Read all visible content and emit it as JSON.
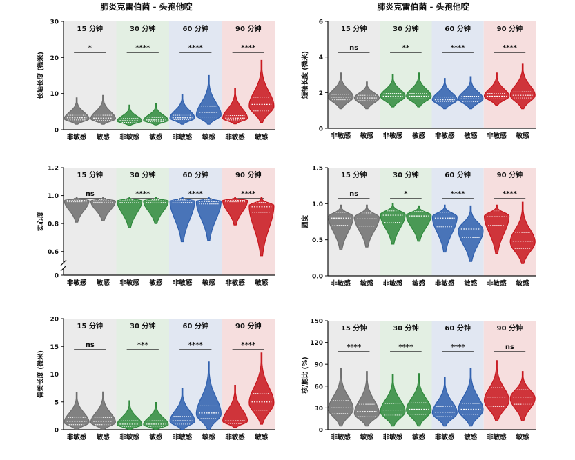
{
  "titles": [
    "肺炎克雷伯菌 - 头孢他啶",
    "肺炎克雷伯菌 - 头孢他啶"
  ],
  "colors": {
    "groups": [
      "#6e6e6e",
      "#2f8a3c",
      "#2e5fae",
      "#c8161d"
    ],
    "backgrounds": [
      "#ebebeb",
      "#e3efe3",
      "#e1e7f2",
      "#f6dede"
    ]
  },
  "chart_data": [
    {
      "type": "violin",
      "id": "long-axis",
      "ylabel": "长轴长度 (微米)",
      "ylim": [
        0,
        30
      ],
      "yticks": [
        0,
        10,
        20,
        30
      ],
      "groups": [
        "15 分钟",
        "30 分钟",
        "60 分钟",
        "90 分钟"
      ],
      "categories": [
        "非敏感",
        "敏感"
      ],
      "significance": [
        "*",
        "****",
        "****",
        "****"
      ],
      "violins": [
        {
          "median": 3.3,
          "q1": 2.7,
          "q3": 4.0,
          "min": 1.5,
          "max": 8.8,
          "peak": 3.0
        },
        {
          "median": 3.2,
          "q1": 2.6,
          "q3": 4.0,
          "min": 1.5,
          "max": 9.5,
          "peak": 3.0
        },
        {
          "median": 2.5,
          "q1": 2.0,
          "q3": 3.1,
          "min": 1.2,
          "max": 6.8,
          "peak": 2.4
        },
        {
          "median": 2.7,
          "q1": 2.2,
          "q3": 3.4,
          "min": 1.3,
          "max": 7.2,
          "peak": 2.6
        },
        {
          "median": 3.3,
          "q1": 2.8,
          "q3": 4.0,
          "min": 1.5,
          "max": 9.8,
          "peak": 3.2
        },
        {
          "median": 4.8,
          "q1": 3.5,
          "q3": 6.5,
          "min": 1.5,
          "max": 15.0,
          "peak": 4.0
        },
        {
          "median": 3.2,
          "q1": 2.7,
          "q3": 3.9,
          "min": 1.6,
          "max": 11.5,
          "peak": 3.1
        },
        {
          "median": 7.0,
          "q1": 5.2,
          "q3": 9.0,
          "min": 2.0,
          "max": 19.2,
          "peak": 6.5
        }
      ]
    },
    {
      "type": "violin",
      "id": "short-axis",
      "ylabel": "短轴长度 (微米)",
      "ylim": [
        0,
        6
      ],
      "yticks": [
        0,
        2,
        4,
        6
      ],
      "groups": [
        "15 分钟",
        "30 分钟",
        "60 分钟",
        "90 分钟"
      ],
      "categories": [
        "非敏感",
        "敏感"
      ],
      "significance": [
        "ns",
        "**",
        "****",
        "****"
      ],
      "violins": [
        {
          "median": 1.75,
          "q1": 1.6,
          "q3": 1.9,
          "min": 1.1,
          "max": 3.1,
          "peak": 1.75
        },
        {
          "median": 1.7,
          "q1": 1.55,
          "q3": 1.85,
          "min": 1.1,
          "max": 2.6,
          "peak": 1.7
        },
        {
          "median": 1.8,
          "q1": 1.65,
          "q3": 1.95,
          "min": 1.2,
          "max": 3.0,
          "peak": 1.8
        },
        {
          "median": 1.8,
          "q1": 1.65,
          "q3": 1.95,
          "min": 1.2,
          "max": 3.1,
          "peak": 1.8
        },
        {
          "median": 1.6,
          "q1": 1.5,
          "q3": 1.75,
          "min": 1.1,
          "max": 2.8,
          "peak": 1.6
        },
        {
          "median": 1.65,
          "q1": 1.5,
          "q3": 1.8,
          "min": 1.1,
          "max": 2.9,
          "peak": 1.65
        },
        {
          "median": 1.8,
          "q1": 1.65,
          "q3": 1.95,
          "min": 1.3,
          "max": 3.1,
          "peak": 1.8
        },
        {
          "median": 1.85,
          "q1": 1.7,
          "q3": 2.05,
          "min": 1.1,
          "max": 3.6,
          "peak": 1.85
        }
      ]
    },
    {
      "type": "violin",
      "id": "solidity",
      "ylabel": "实心度",
      "ylim": [
        0.5,
        1.2
      ],
      "yticks": [
        0,
        0.6,
        0.8,
        1.0,
        1.2
      ],
      "axis_break": true,
      "groups": [
        "15 分钟",
        "30 分钟",
        "60 分钟",
        "90 分钟"
      ],
      "categories": [
        "非敏感",
        "敏感"
      ],
      "significance": [
        "ns",
        "****",
        "****",
        "****"
      ],
      "violins": [
        {
          "median": 0.965,
          "q1": 0.955,
          "q3": 0.975,
          "min": 0.81,
          "max": 0.985,
          "peak": 0.965
        },
        {
          "median": 0.962,
          "q1": 0.952,
          "q3": 0.972,
          "min": 0.82,
          "max": 0.985,
          "peak": 0.962
        },
        {
          "median": 0.962,
          "q1": 0.95,
          "q3": 0.972,
          "min": 0.77,
          "max": 0.985,
          "peak": 0.963
        },
        {
          "median": 0.962,
          "q1": 0.95,
          "q3": 0.972,
          "min": 0.8,
          "max": 0.985,
          "peak": 0.963
        },
        {
          "median": 0.962,
          "q1": 0.95,
          "q3": 0.972,
          "min": 0.67,
          "max": 0.985,
          "peak": 0.963
        },
        {
          "median": 0.958,
          "q1": 0.94,
          "q3": 0.97,
          "min": 0.68,
          "max": 0.985,
          "peak": 0.96
        },
        {
          "median": 0.965,
          "q1": 0.955,
          "q3": 0.975,
          "min": 0.79,
          "max": 0.985,
          "peak": 0.965
        },
        {
          "median": 0.92,
          "q1": 0.88,
          "q3": 0.95,
          "min": 0.57,
          "max": 0.985,
          "peak": 0.93
        }
      ]
    },
    {
      "type": "violin",
      "id": "circularity",
      "ylabel": "圆度",
      "ylim": [
        0,
        1.5
      ],
      "yticks": [
        0.0,
        0.5,
        1.0,
        1.5
      ],
      "groups": [
        "15 分钟",
        "30 分钟",
        "60 分钟",
        "90 分钟"
      ],
      "categories": [
        "非敏感",
        "敏感"
      ],
      "significance": [
        "ns",
        "*",
        "****",
        "****"
      ],
      "violins": [
        {
          "median": 0.8,
          "q1": 0.7,
          "q3": 0.88,
          "min": 0.36,
          "max": 0.98,
          "peak": 0.82
        },
        {
          "median": 0.79,
          "q1": 0.69,
          "q3": 0.87,
          "min": 0.4,
          "max": 0.98,
          "peak": 0.81
        },
        {
          "median": 0.84,
          "q1": 0.74,
          "q3": 0.9,
          "min": 0.44,
          "max": 1.0,
          "peak": 0.85
        },
        {
          "median": 0.83,
          "q1": 0.73,
          "q3": 0.89,
          "min": 0.48,
          "max": 0.97,
          "peak": 0.84
        },
        {
          "median": 0.8,
          "q1": 0.68,
          "q3": 0.88,
          "min": 0.33,
          "max": 0.98,
          "peak": 0.82
        },
        {
          "median": 0.65,
          "q1": 0.53,
          "q3": 0.76,
          "min": 0.2,
          "max": 0.97,
          "peak": 0.63
        },
        {
          "median": 0.82,
          "q1": 0.7,
          "q3": 0.9,
          "min": 0.31,
          "max": 0.98,
          "peak": 0.83
        },
        {
          "median": 0.48,
          "q1": 0.38,
          "q3": 0.6,
          "min": 0.17,
          "max": 1.02,
          "peak": 0.47
        }
      ]
    },
    {
      "type": "violin",
      "id": "skeleton-length",
      "ylabel": "骨架长度 (微米)",
      "ylim": [
        0,
        20
      ],
      "yticks": [
        0,
        5,
        10,
        15,
        20
      ],
      "groups": [
        "15 分钟",
        "30 分钟",
        "60 分钟",
        "90 分钟"
      ],
      "categories": [
        "非敏感",
        "敏感"
      ],
      "significance": [
        "ns",
        "***",
        "****",
        "****"
      ],
      "violins": [
        {
          "median": 1.5,
          "q1": 0.9,
          "q3": 2.2,
          "min": 0.0,
          "max": 6.7,
          "peak": 1.3
        },
        {
          "median": 1.5,
          "q1": 0.9,
          "q3": 2.2,
          "min": 0.0,
          "max": 6.8,
          "peak": 1.3
        },
        {
          "median": 1.0,
          "q1": 0.6,
          "q3": 1.6,
          "min": 0.0,
          "max": 5.2,
          "peak": 0.9
        },
        {
          "median": 1.0,
          "q1": 0.6,
          "q3": 1.6,
          "min": 0.0,
          "max": 4.9,
          "peak": 0.9
        },
        {
          "median": 1.6,
          "q1": 1.0,
          "q3": 2.4,
          "min": 0.0,
          "max": 7.4,
          "peak": 1.5
        },
        {
          "median": 3.0,
          "q1": 2.0,
          "q3": 4.3,
          "min": 0.0,
          "max": 12.2,
          "peak": 2.8
        },
        {
          "median": 1.6,
          "q1": 1.1,
          "q3": 2.3,
          "min": 0.4,
          "max": 8.0,
          "peak": 1.5
        },
        {
          "median": 5.0,
          "q1": 3.5,
          "q3": 6.5,
          "min": 1.0,
          "max": 13.8,
          "peak": 4.8
        }
      ]
    },
    {
      "type": "violin",
      "id": "nc-ratio",
      "ylabel": "核/胞比 (%)",
      "ylim": [
        0,
        150
      ],
      "yticks": [
        0,
        30,
        60,
        90,
        120,
        150
      ],
      "groups": [
        "15 分钟",
        "30 分钟",
        "60 分钟",
        "90 分钟"
      ],
      "categories": [
        "非敏感",
        "敏感"
      ],
      "significance": [
        "****",
        "****",
        "****",
        "ns"
      ],
      "violins": [
        {
          "median": 30,
          "q1": 22,
          "q3": 40,
          "min": 5,
          "max": 84,
          "peak": 28
        },
        {
          "median": 25,
          "q1": 18,
          "q3": 35,
          "min": 5,
          "max": 80,
          "peak": 22
        },
        {
          "median": 27,
          "q1": 20,
          "q3": 36,
          "min": 5,
          "max": 76,
          "peak": 25
        },
        {
          "median": 28,
          "q1": 21,
          "q3": 37,
          "min": 5,
          "max": 77,
          "peak": 27
        },
        {
          "median": 24,
          "q1": 18,
          "q3": 32,
          "min": 5,
          "max": 72,
          "peak": 23
        },
        {
          "median": 28,
          "q1": 21,
          "q3": 36,
          "min": 5,
          "max": 84,
          "peak": 27
        },
        {
          "median": 45,
          "q1": 32,
          "q3": 58,
          "min": 12,
          "max": 95,
          "peak": 40
        },
        {
          "median": 45,
          "q1": 35,
          "q3": 55,
          "min": 12,
          "max": 80,
          "peak": 43
        }
      ]
    }
  ]
}
